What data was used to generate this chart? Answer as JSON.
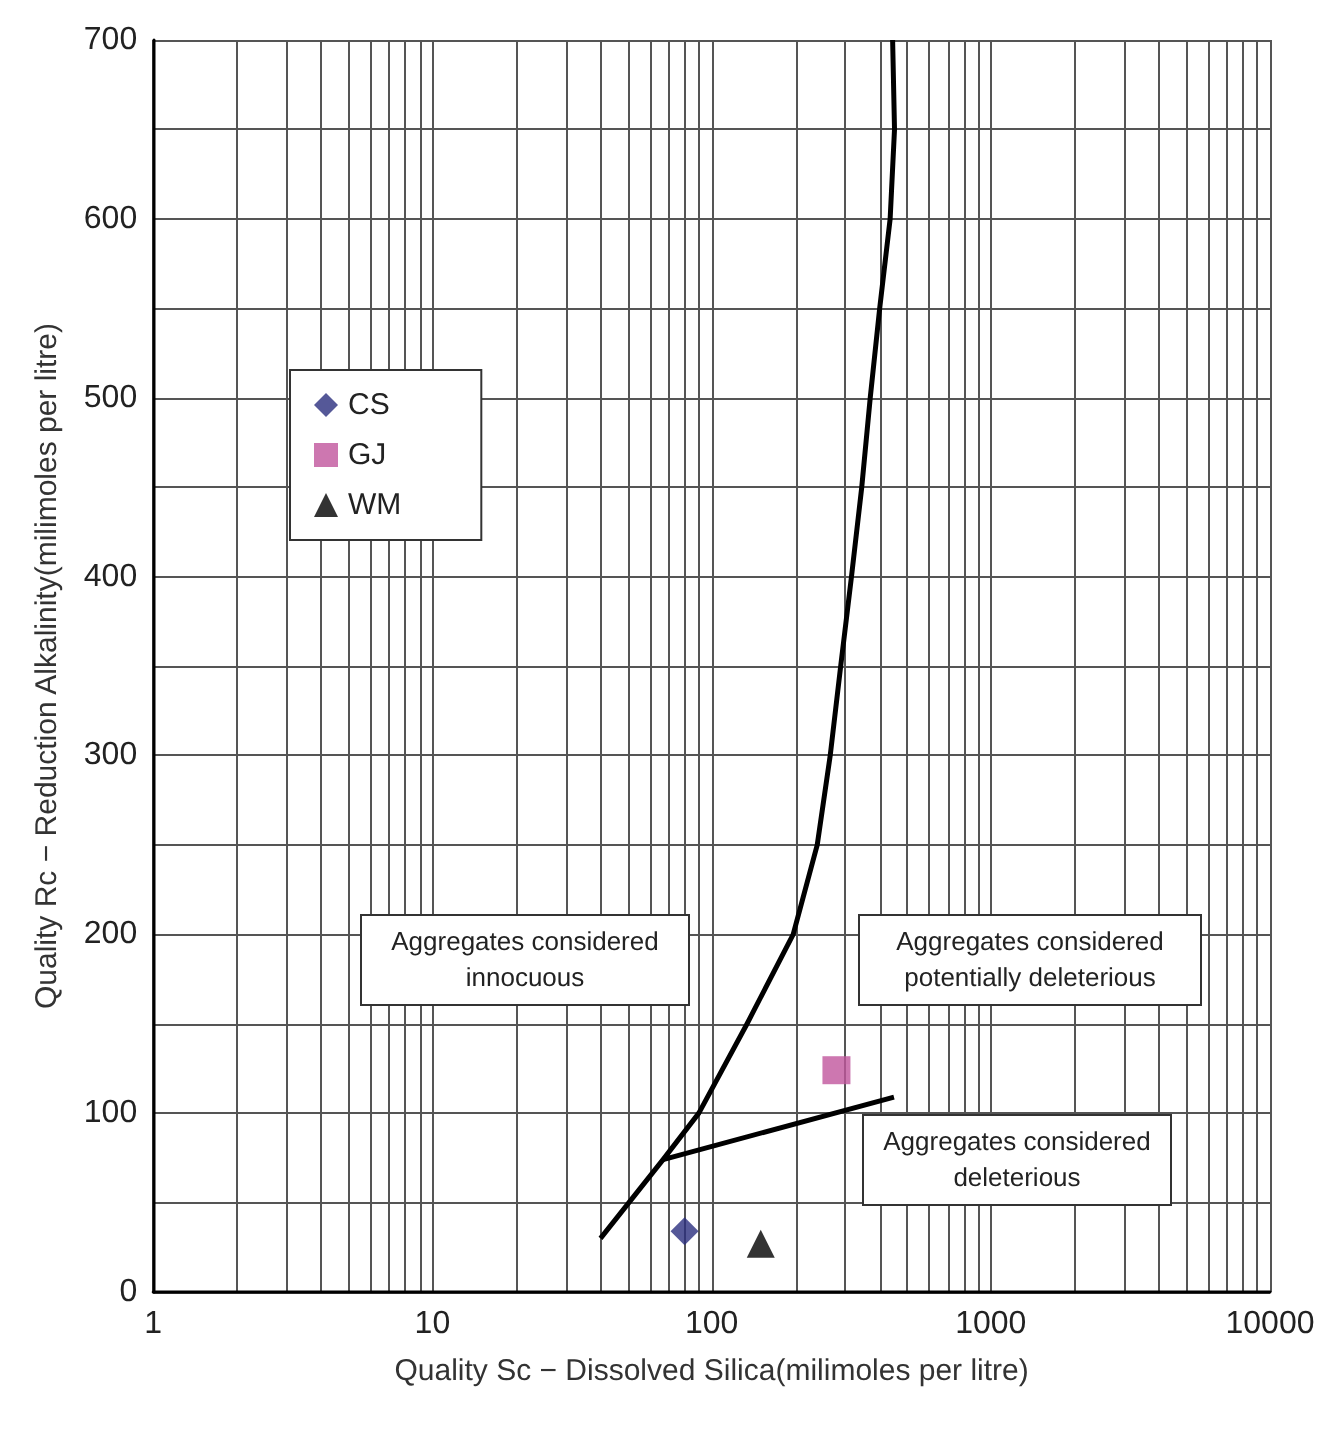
{
  "chart_data": {
    "type": "scatter",
    "xlabel": "Quality Sc − Dissolved Silica(milimoles per litre)",
    "ylabel": "Quality Rc − Reduction Alkalinity(milimoles per litre)",
    "log": "x",
    "grid": true,
    "legend": "top left",
    "xlim": [
      1,
      10000
    ],
    "ylim": [
      0,
      700
    ],
    "xticks": [
      1,
      {
        "value": 2,
        "label": null
      },
      {
        "value": 3,
        "label": null
      },
      {
        "value": 4,
        "label": null
      },
      {
        "value": 5,
        "label": null
      },
      {
        "value": 6,
        "label": null
      },
      {
        "value": 7,
        "label": null
      },
      {
        "value": 8,
        "label": null
      },
      {
        "value": 9,
        "label": null
      },
      10,
      {
        "value": 20,
        "label": null
      },
      {
        "value": 30,
        "label": null
      },
      {
        "value": 40,
        "label": null
      },
      {
        "value": 50,
        "label": null
      },
      {
        "value": 60,
        "label": null
      },
      {
        "value": 70,
        "label": null
      },
      {
        "value": 80,
        "label": null
      },
      {
        "value": 90,
        "label": null
      },
      100,
      {
        "value": 200,
        "label": null
      },
      {
        "value": 300,
        "label": null
      },
      {
        "value": 400,
        "label": null
      },
      {
        "value": 500,
        "label": null
      },
      {
        "value": 600,
        "label": null
      },
      {
        "value": 700,
        "label": null
      },
      {
        "value": 800,
        "label": null
      },
      {
        "value": 900,
        "label": null
      },
      1000,
      {
        "value": 2000,
        "label": null
      },
      {
        "value": 3000,
        "label": null
      },
      {
        "value": 4000,
        "label": null
      },
      {
        "value": 5000,
        "label": null
      },
      {
        "value": 6000,
        "label": null
      },
      {
        "value": 7000,
        "label": null
      },
      {
        "value": 8000,
        "label": null
      },
      {
        "value": 9000,
        "label": null
      },
      10000
    ],
    "yticks": [
      0,
      {
        "value": 50,
        "label": null
      },
      100,
      {
        "value": 150,
        "label": null
      },
      200,
      {
        "value": 250,
        "label": null
      },
      300,
      {
        "value": 350,
        "label": null
      },
      400,
      {
        "value": 450,
        "label": null
      },
      500,
      {
        "value": 550,
        "label": null
      },
      600,
      {
        "value": 650,
        "label": null
      },
      700
    ],
    "series": [
      {
        "name": "CS",
        "color": "#2b2e7e",
        "marker": "diamond",
        "x": [
          80
        ],
        "values": [
          34
        ]
      },
      {
        "name": "GJ",
        "color": "#c0559c",
        "marker": "square",
        "x": [
          280
        ],
        "values": [
          124
        ]
      },
      {
        "name": "WM",
        "color": "#000000",
        "marker": "triangle",
        "x": [
          150
        ],
        "values": [
          27
        ]
      },
      {
        "type": "line",
        "color": "#000000",
        "marker": "none",
        "x": [
          40,
          67,
          90,
          134,
          196,
          239,
          266,
          290,
          317,
          345,
          370,
          400,
          436,
          452,
          445
        ],
        "values": [
          30,
          74,
          100,
          150,
          200,
          250,
          300,
          350,
          400,
          450,
          500,
          550,
          600,
          650,
          700
        ]
      },
      {
        "type": "line",
        "color": "#000000",
        "marker": "none",
        "x": [
          67,
          450
        ],
        "values": [
          74,
          109
        ]
      }
    ],
    "annotations": [
      "Aggregates considered innocuous",
      "Aggregates considered potentially deleterious",
      "Aggregates considered deleterious"
    ]
  }
}
